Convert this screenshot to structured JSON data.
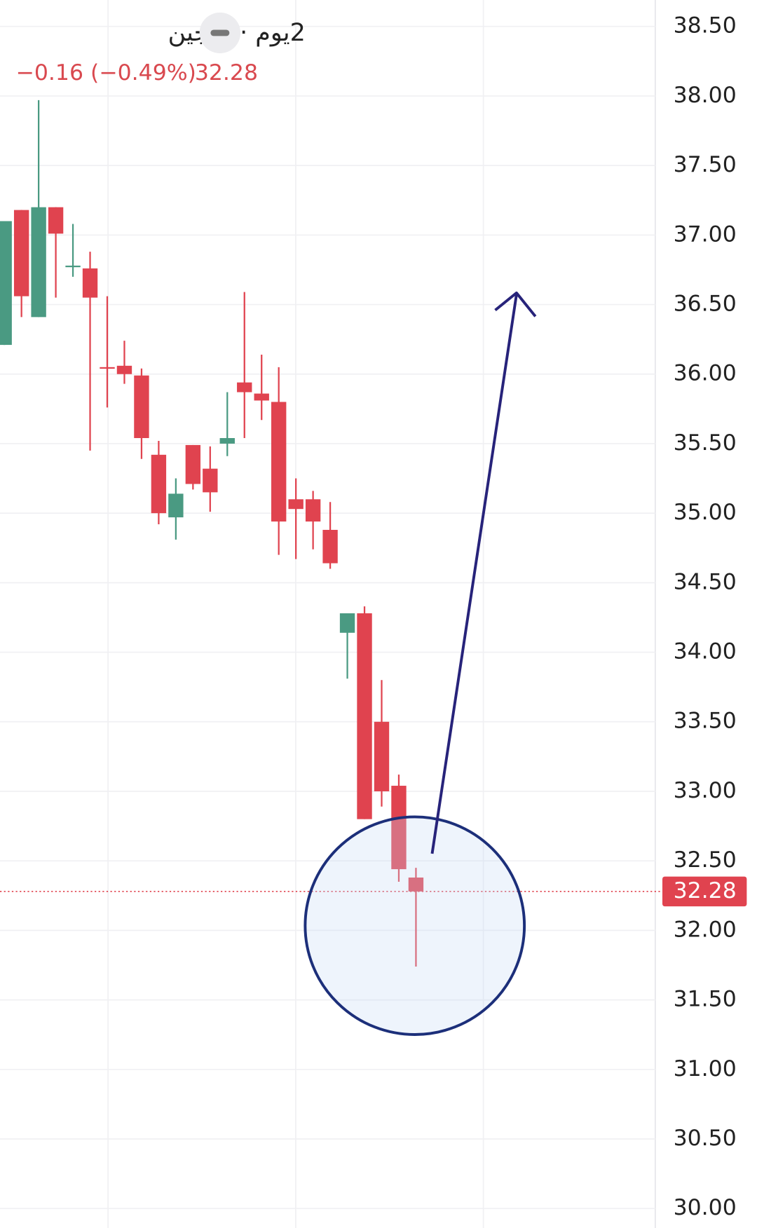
{
  "chart_data": {
    "type": "candlestick",
    "title": "2يوم · اللجين",
    "change": "−0.16 (−0.49%)",
    "last_price": 32.28,
    "up_color": "#4a9a82",
    "down_color": "#e0434f",
    "ylim": [
      29.86,
      38.69
    ],
    "yticks": [
      {
        "value": 30,
        "label": "30.00"
      },
      {
        "value": 30.5,
        "label": "30.50"
      },
      {
        "value": 31,
        "label": "31.00"
      },
      {
        "value": 31.5,
        "label": "31.50"
      },
      {
        "value": 32,
        "label": "32.00"
      },
      {
        "value": 32.5,
        "label": "32.50"
      },
      {
        "value": 33,
        "label": "33.00"
      },
      {
        "value": 33.5,
        "label": "33.50"
      },
      {
        "value": 34,
        "label": "34.00"
      },
      {
        "value": 34.5,
        "label": "34.50"
      },
      {
        "value": 35,
        "label": "35.00"
      },
      {
        "value": 35.5,
        "label": "35.50"
      },
      {
        "value": 36,
        "label": "36.00"
      },
      {
        "value": 36.5,
        "label": "36.50"
      },
      {
        "value": 37,
        "label": "37.00"
      },
      {
        "value": 37.5,
        "label": "37.50"
      },
      {
        "value": 38,
        "label": "38.00"
      },
      {
        "value": 38.5,
        "label": "38.50"
      }
    ],
    "grid": true,
    "series": [
      {
        "open": [
          36.21,
          37.18,
          36.41,
          37.2,
          36.77,
          36.76,
          36.05,
          36.06,
          35.99,
          35.42,
          34.97,
          35.49,
          35.32,
          35.5,
          35.94,
          35.86,
          35.8,
          35.1,
          35.1,
          34.88,
          34.14,
          34.28,
          33.5,
          33.04,
          32.38
        ],
        "high": [
          37.1,
          37.18,
          37.97,
          37.2,
          37.08,
          36.88,
          36.56,
          36.24,
          36.04,
          35.52,
          35.25,
          35.49,
          35.48,
          35.87,
          36.59,
          36.14,
          36.05,
          35.25,
          35.16,
          35.08,
          34.28,
          34.33,
          33.8,
          33.12,
          32.45
        ],
        "low": [
          36.21,
          36.41,
          36.41,
          36.55,
          36.7,
          35.45,
          35.76,
          35.93,
          35.39,
          34.92,
          34.81,
          35.17,
          35.01,
          35.41,
          35.54,
          35.67,
          34.7,
          34.67,
          34.74,
          34.6,
          33.81,
          32.8,
          32.89,
          32.35,
          31.74
        ],
        "close": [
          37.1,
          36.56,
          37.2,
          37.01,
          36.78,
          36.55,
          36.04,
          36.0,
          35.54,
          35.0,
          35.14,
          35.21,
          35.15,
          35.54,
          35.87,
          35.81,
          34.94,
          35.03,
          34.94,
          34.64,
          34.28,
          32.8,
          33.0,
          32.44,
          32.28
        ]
      }
    ]
  }
}
